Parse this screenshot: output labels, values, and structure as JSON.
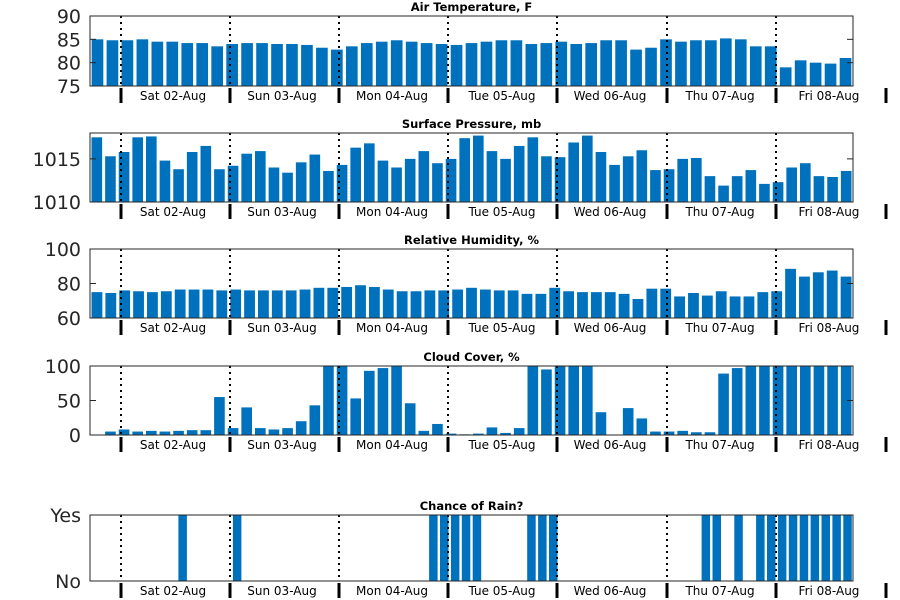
{
  "chart_data": [
    {
      "type": "bar",
      "title": "Air Temperature, F",
      "ylim": [
        75,
        90
      ],
      "yticks": [
        "75",
        "80",
        "85",
        "90"
      ],
      "values": [
        85.0,
        84.8,
        84.8,
        85.0,
        84.5,
        84.5,
        84.2,
        84.2,
        83.5,
        84.0,
        84.2,
        84.2,
        84.0,
        84.0,
        83.8,
        83.2,
        82.8,
        83.5,
        84.2,
        84.5,
        84.8,
        84.5,
        84.2,
        84.0,
        83.8,
        84.2,
        84.5,
        84.8,
        84.8,
        84.0,
        84.2,
        84.5,
        84.0,
        84.2,
        84.8,
        84.8,
        82.8,
        83.2,
        85.0,
        84.5,
        84.8,
        84.8,
        85.2,
        85.0,
        83.5,
        83.5,
        79.0,
        80.5,
        80.0,
        79.8,
        81.0
      ]
    },
    {
      "type": "bar",
      "title": "Surface Pressure, mb",
      "ylim": [
        1010,
        1018
      ],
      "yticks": [
        "1010",
        "1015"
      ],
      "values": [
        1017.5,
        1015.3,
        1015.8,
        1017.5,
        1017.6,
        1014.8,
        1013.8,
        1015.8,
        1016.5,
        1013.8,
        1014.2,
        1015.6,
        1015.9,
        1014.0,
        1013.4,
        1014.6,
        1015.5,
        1013.6,
        1014.3,
        1016.3,
        1016.8,
        1014.8,
        1014.0,
        1015.0,
        1015.9,
        1014.5,
        1015.0,
        1017.4,
        1017.7,
        1015.9,
        1015.0,
        1016.5,
        1017.5,
        1015.3,
        1015.2,
        1016.9,
        1017.7,
        1015.8,
        1014.3,
        1015.3,
        1016.0,
        1013.7,
        1013.8,
        1015.0,
        1015.1,
        1013.0,
        1011.9,
        1013.0,
        1013.7,
        1012.1,
        1012.3,
        1014.0,
        1014.5,
        1013.0,
        1012.9,
        1013.6
      ]
    },
    {
      "type": "bar",
      "title": "Relative Humidity, %",
      "ylim": [
        60,
        100
      ],
      "yticks": [
        "60",
        "80",
        "100"
      ],
      "values": [
        75,
        74.5,
        76,
        75.5,
        75,
        75.5,
        76.5,
        76.5,
        76.5,
        76,
        76.5,
        76,
        76,
        76,
        76,
        76.5,
        77.5,
        77.5,
        78,
        79,
        78,
        76.5,
        75.5,
        75.5,
        76,
        76,
        76.5,
        77.5,
        76.5,
        76,
        76,
        74,
        74,
        77.5,
        75.5,
        75,
        75,
        75,
        74,
        71,
        77,
        77,
        72.5,
        74.5,
        73,
        75.5,
        72.5,
        72.5,
        75,
        75.5,
        88.5,
        84,
        86.5,
        87.5,
        84
      ]
    },
    {
      "type": "bar",
      "title": "Cloud Cover, %",
      "ylim": [
        0,
        100
      ],
      "yticks": [
        "0",
        "50",
        "100"
      ],
      "values": [
        0,
        5,
        8,
        5,
        6,
        5,
        6,
        7,
        7,
        55,
        10,
        40,
        10,
        8,
        10,
        20,
        43,
        100,
        100,
        53,
        93,
        97,
        100,
        46,
        6,
        16,
        2,
        1,
        2,
        11,
        3,
        10,
        100,
        95,
        100,
        100,
        100,
        33,
        0,
        39,
        24,
        5,
        5,
        6,
        4,
        4,
        89,
        97,
        100,
        100,
        100,
        100,
        100,
        100,
        100,
        100
      ]
    },
    {
      "type": "bar",
      "title": "Chance of Rain?",
      "ylim": [
        0,
        1
      ],
      "yticks": [
        "No",
        "Yes"
      ],
      "values": [
        0,
        0,
        0,
        0,
        0,
        0,
        0,
        0,
        1,
        0,
        0,
        0,
        0,
        1,
        0,
        0,
        0,
        0,
        0,
        0,
        0,
        0,
        0,
        0,
        0,
        0,
        0,
        0,
        0,
        0,
        0,
        1,
        1,
        1,
        1,
        1,
        0,
        0,
        0,
        0,
        1,
        1,
        1,
        0,
        0,
        0,
        0,
        0,
        0,
        0,
        0,
        0,
        0,
        0,
        0,
        0,
        1,
        1,
        0,
        1,
        0,
        1,
        1,
        1,
        1,
        1,
        1,
        1,
        1,
        1
      ]
    }
  ],
  "day_labels": [
    "Sat 02-Aug",
    "Sun 03-Aug",
    "Mon 04-Aug",
    "Tue 05-Aug",
    "Wed 06-Aug",
    "Thu 07-Aug",
    "Fri 08-Aug"
  ],
  "colors": {
    "bar": "#0072BD",
    "axis": "#262626",
    "divider": "#000000"
  }
}
